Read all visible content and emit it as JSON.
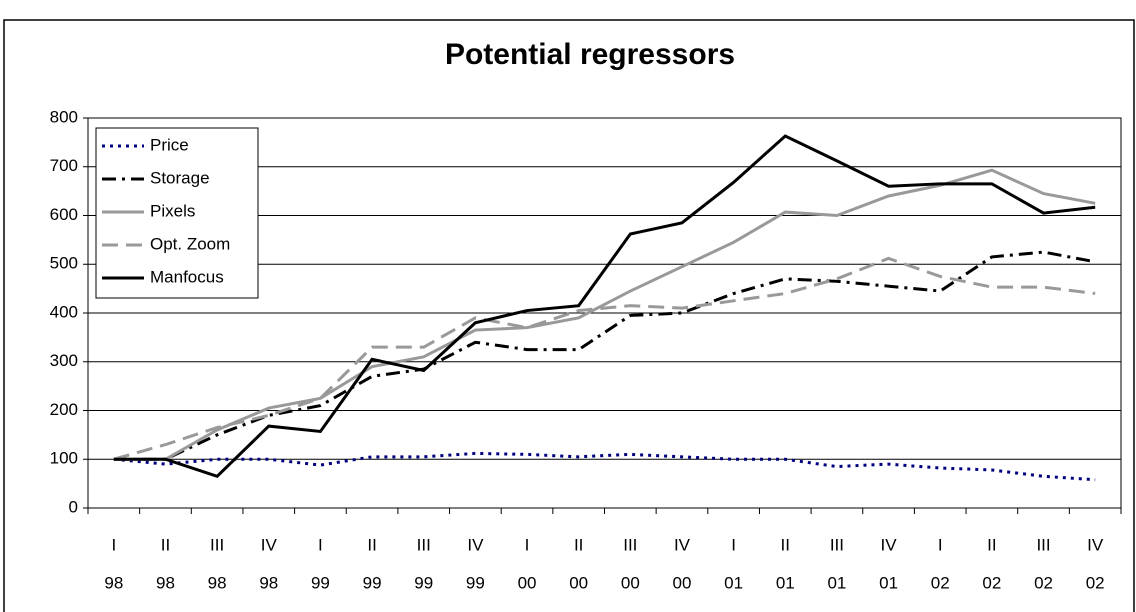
{
  "chart_data": {
    "type": "line",
    "title": "Potential regressors",
    "categories": [
      {
        "quarter": "I",
        "year": "98"
      },
      {
        "quarter": "II",
        "year": "98"
      },
      {
        "quarter": "III",
        "year": "98"
      },
      {
        "quarter": "IV",
        "year": "98"
      },
      {
        "quarter": "I",
        "year": "99"
      },
      {
        "quarter": "II",
        "year": "99"
      },
      {
        "quarter": "III",
        "year": "99"
      },
      {
        "quarter": "IV",
        "year": "99"
      },
      {
        "quarter": "I",
        "year": "00"
      },
      {
        "quarter": "II",
        "year": "00"
      },
      {
        "quarter": "III",
        "year": "00"
      },
      {
        "quarter": "IV",
        "year": "00"
      },
      {
        "quarter": "I",
        "year": "01"
      },
      {
        "quarter": "II",
        "year": "01"
      },
      {
        "quarter": "III",
        "year": "01"
      },
      {
        "quarter": "IV",
        "year": "01"
      },
      {
        "quarter": "I",
        "year": "02"
      },
      {
        "quarter": "II",
        "year": "02"
      },
      {
        "quarter": "III",
        "year": "02"
      },
      {
        "quarter": "IV",
        "year": "02"
      }
    ],
    "series": [
      {
        "name": "Price",
        "color": "#000080",
        "dash": "dotted",
        "values": [
          100,
          90,
          100,
          100,
          88,
          105,
          105,
          112,
          110,
          105,
          110,
          105,
          100,
          100,
          85,
          90,
          82,
          78,
          65,
          58
        ]
      },
      {
        "name": "Storage",
        "color": "#000000",
        "dash": "dash-dot",
        "values": [
          100,
          100,
          150,
          190,
          210,
          270,
          285,
          340,
          325,
          325,
          395,
          400,
          440,
          470,
          465,
          455,
          445,
          515,
          525,
          505
        ]
      },
      {
        "name": "Pixels",
        "color": "#999999",
        "dash": "solid",
        "values": [
          100,
          100,
          160,
          205,
          225,
          290,
          310,
          365,
          370,
          390,
          445,
          495,
          545,
          607,
          600,
          640,
          662,
          693,
          645,
          625
        ]
      },
      {
        "name": "Opt. Zoom",
        "color": "#999999",
        "dash": "dashed",
        "values": [
          100,
          130,
          165,
          190,
          225,
          330,
          330,
          390,
          370,
          405,
          415,
          410,
          425,
          440,
          470,
          512,
          475,
          453,
          453,
          440
        ]
      },
      {
        "name": "Manfocus",
        "color": "#000000",
        "dash": "solid",
        "values": [
          100,
          100,
          65,
          168,
          157,
          305,
          282,
          380,
          405,
          415,
          562,
          585,
          668,
          763,
          712,
          660,
          665,
          665,
          605,
          617
        ]
      }
    ],
    "ylim": [
      0,
      800
    ],
    "yticks": [
      0,
      100,
      200,
      300,
      400,
      500,
      600,
      700,
      800
    ],
    "grid": true,
    "legend": "upper-left"
  }
}
